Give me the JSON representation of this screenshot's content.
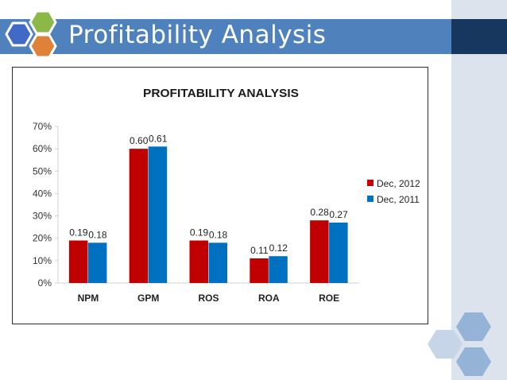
{
  "slide": {
    "title": "Profitability Analysis",
    "colors": {
      "title_bar": "#4f81bd",
      "side_panel": "#dce3ec",
      "dark_accent": "#17375e"
    }
  },
  "chart_data": {
    "type": "bar",
    "title": "PROFITABILITY ANALYSIS",
    "categories": [
      "NPM",
      "GPM",
      "ROS",
      "ROA",
      "ROE"
    ],
    "series": [
      {
        "name": "Dec, 2012",
        "values": [
          0.19,
          0.6,
          0.19,
          0.11,
          0.28
        ],
        "labels": [
          "0.19",
          "0.60",
          "0.19",
          "0.11",
          "0.28"
        ],
        "color": "#c00000"
      },
      {
        "name": "Dec, 2011",
        "values": [
          0.18,
          0.61,
          0.18,
          0.12,
          0.27
        ],
        "labels": [
          "0.18",
          "0.61",
          "0.18",
          "0.12",
          "0.27"
        ],
        "color": "#0070c0"
      }
    ],
    "y_ticks": [
      "0%",
      "10%",
      "20%",
      "30%",
      "40%",
      "50%",
      "60%",
      "70%"
    ],
    "ylim": [
      0,
      0.7
    ],
    "xlabel": "",
    "ylabel": "",
    "grid": false,
    "legend_position": "right"
  }
}
